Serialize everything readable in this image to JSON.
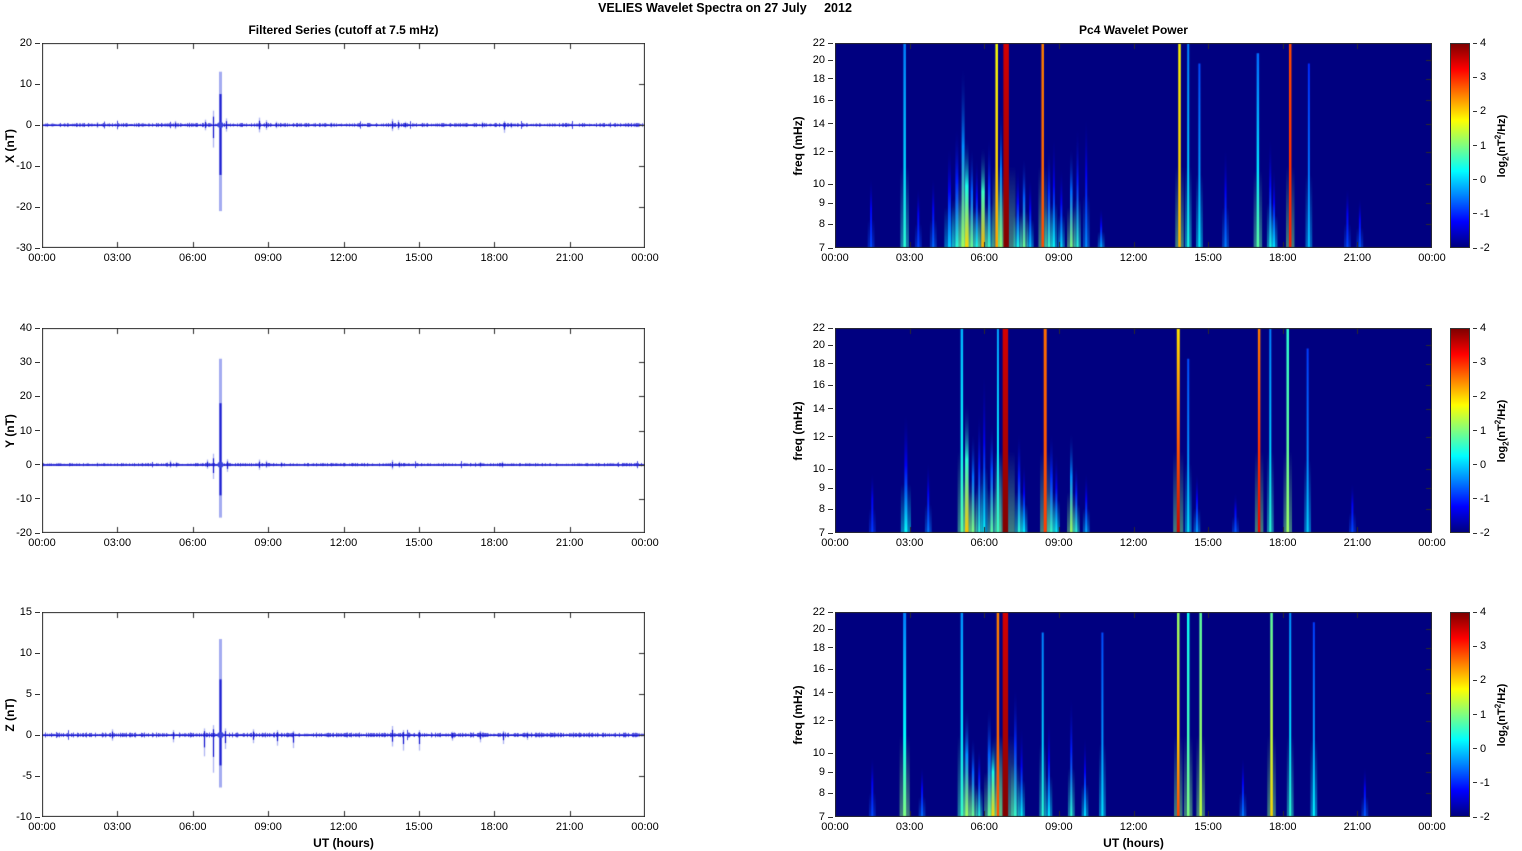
{
  "page": {
    "title": "VELIES Wavelet Spectra on 27 July     2012"
  },
  "time_axis": {
    "label": "UT (hours)",
    "tick_labels": [
      "00:00",
      "03:00",
      "06:00",
      "09:00",
      "12:00",
      "15:00",
      "18:00",
      "21:00",
      "00:00"
    ],
    "tick_hours": [
      0,
      3,
      6,
      9,
      12,
      15,
      18,
      21,
      24
    ],
    "range_hours": [
      0,
      24
    ]
  },
  "colors": {
    "line_blue": "#1414cd",
    "halo_blue": "#8c96e8",
    "axis": "#2b2b2b",
    "text": "#000000",
    "spectrogram_background": "#000080"
  },
  "colorbar": {
    "ticks": [
      4,
      3,
      2,
      1,
      0,
      -1,
      -2
    ],
    "range": [
      -2,
      4
    ],
    "label": {
      "prefix": "log",
      "sub": "2",
      "mid": "(nT",
      "sup": "2",
      "suffix": "/Hz)"
    }
  },
  "chart_data": [
    {
      "id": "series-x",
      "type": "line",
      "title": "Filtered Series (cutoff at 7.5 mHz)",
      "ylabel": "X (nT)",
      "ylim": [
        -30,
        20
      ],
      "yticks": [
        20,
        10,
        0,
        -10,
        -20,
        -30
      ],
      "noise_amp_nT": 0.5,
      "spikes_t_up_down": [
        [
          2.2,
          0.7,
          -0.7
        ],
        [
          5.3,
          1.0,
          -1.0
        ],
        [
          6.5,
          1.3,
          -1.3
        ],
        [
          6.8,
          3.5,
          -5.5
        ],
        [
          7.08,
          13,
          -21
        ],
        [
          7.32,
          1.6,
          -1.6
        ],
        [
          8.65,
          1.8,
          -1.8
        ],
        [
          8.92,
          1.2,
          -1.2
        ],
        [
          9.3,
          0.8,
          -0.8
        ],
        [
          11.5,
          0.6,
          -0.6
        ],
        [
          13.95,
          1.5,
          -1.5
        ],
        [
          14.15,
          1.2,
          -1.2
        ],
        [
          14.45,
          0.8,
          -0.8
        ],
        [
          17.5,
          0.8,
          -0.8
        ],
        [
          18.4,
          1.0,
          -1.9
        ],
        [
          18.65,
          0.6,
          -0.8
        ]
      ]
    },
    {
      "id": "wavelet-x",
      "type": "heatmap",
      "title": "Pc4 Wavelet Power",
      "ylabel": "freq (mHz)",
      "yticks": [
        22,
        20,
        18,
        16,
        14,
        12,
        10,
        9,
        8,
        7
      ],
      "flim": [
        7,
        22
      ],
      "clim": [
        -2,
        4
      ],
      "streaks_t_w_reach_level_top": [
        [
          1.45,
          2,
          0.35,
          -0.8,
          null
        ],
        [
          2.8,
          2.5,
          1,
          0.5,
          -0.5
        ],
        [
          3.35,
          2,
          0.3,
          -0.8,
          null
        ],
        [
          3.95,
          2,
          0.35,
          -0.6,
          null
        ],
        [
          4.6,
          3,
          0.5,
          0.0,
          null
        ],
        [
          4.9,
          3,
          0.6,
          0.5,
          null
        ],
        [
          5.15,
          3,
          0.9,
          1.2,
          null
        ],
        [
          5.3,
          3.5,
          0.55,
          2.0,
          null
        ],
        [
          5.5,
          2.5,
          0.5,
          0.9,
          null
        ],
        [
          5.7,
          2,
          0.45,
          0.4,
          null
        ],
        [
          5.95,
          3.5,
          0.5,
          2.2,
          null
        ],
        [
          6.2,
          2.5,
          0.55,
          0.6,
          null
        ],
        [
          6.5,
          2.5,
          1,
          2.3,
          1.7
        ],
        [
          6.67,
          2,
          0.7,
          1.1,
          null
        ],
        [
          6.88,
          5.5,
          1,
          4.0,
          3.5
        ],
        [
          7.35,
          2.5,
          0.4,
          0.4,
          null
        ],
        [
          7.6,
          2.5,
          0.45,
          0.9,
          null
        ],
        [
          7.85,
          2,
          0.35,
          0.0,
          null
        ],
        [
          8.35,
          2.5,
          1,
          2.8,
          2.5
        ],
        [
          8.6,
          2.5,
          0.5,
          0.6,
          null
        ],
        [
          8.8,
          2,
          0.55,
          0.3,
          null
        ],
        [
          9.1,
          2,
          0.4,
          0.1,
          null
        ],
        [
          9.5,
          2.5,
          0.5,
          1.0,
          null
        ],
        [
          9.75,
          2,
          0.6,
          0.5,
          null
        ],
        [
          10.1,
          2,
          0.65,
          -0.4,
          null
        ],
        [
          10.7,
          2,
          0.2,
          -0.2,
          null
        ],
        [
          13.85,
          2.5,
          1,
          2.2,
          1.8
        ],
        [
          14.2,
          2,
          1,
          0.4,
          -0.5
        ],
        [
          14.65,
          2,
          0.9,
          0.2,
          -0.8
        ],
        [
          15.7,
          2,
          0.5,
          -0.5,
          null
        ],
        [
          17.0,
          2.5,
          0.95,
          0.8,
          -0.6
        ],
        [
          17.5,
          2,
          0.55,
          0.4,
          null
        ],
        [
          17.65,
          2,
          0.4,
          0.1,
          null
        ],
        [
          18.3,
          2.5,
          1,
          3.1,
          2.8
        ],
        [
          19.05,
          2,
          0.9,
          -0.1,
          -1.0
        ],
        [
          20.6,
          2,
          0.3,
          -0.8,
          null
        ],
        [
          21.1,
          2,
          0.25,
          -0.7,
          null
        ]
      ]
    },
    {
      "id": "series-y",
      "type": "line",
      "title": "",
      "ylabel": "Y (nT)",
      "ylim": [
        -20,
        40
      ],
      "yticks": [
        40,
        30,
        20,
        10,
        0,
        -10,
        -20
      ],
      "noise_amp_nT": 0.5,
      "spikes_t_up_down": [
        [
          2.2,
          0.6,
          -0.6
        ],
        [
          5.1,
          1.2,
          -0.9
        ],
        [
          5.35,
          0.8,
          -0.8
        ],
        [
          6.55,
          1.5,
          -1.2
        ],
        [
          6.8,
          3.2,
          -4.2
        ],
        [
          7.08,
          31,
          -15.5
        ],
        [
          7.35,
          1.6,
          -2.1
        ],
        [
          8.65,
          1.5,
          -1.5
        ],
        [
          8.92,
          1.2,
          -1.0
        ],
        [
          9.5,
          0.8,
          -0.8
        ],
        [
          13.95,
          1.4,
          -1.4
        ],
        [
          14.2,
          0.9,
          -0.9
        ],
        [
          17.45,
          0.8,
          -0.8
        ],
        [
          18.3,
          0.9,
          -0.9
        ]
      ]
    },
    {
      "id": "wavelet-y",
      "type": "heatmap",
      "title": "",
      "ylabel": "freq (mHz)",
      "yticks": [
        22,
        20,
        18,
        16,
        14,
        12,
        10,
        9,
        8,
        7
      ],
      "flim": [
        7,
        22
      ],
      "clim": [
        -2,
        4
      ],
      "streaks_t_w_reach_level_top": [
        [
          1.5,
          2,
          0.3,
          -0.9,
          null
        ],
        [
          2.85,
          3,
          0.6,
          0.3,
          null
        ],
        [
          3.75,
          2,
          0.35,
          -0.5,
          null
        ],
        [
          5.1,
          2.5,
          1,
          0.8,
          -0.2
        ],
        [
          5.3,
          3.5,
          0.65,
          2.1,
          null
        ],
        [
          5.55,
          2.5,
          0.5,
          1.0,
          null
        ],
        [
          5.8,
          2,
          0.6,
          0.5,
          null
        ],
        [
          6.0,
          2,
          0.8,
          0.3,
          null
        ],
        [
          6.3,
          2.5,
          0.55,
          0.8,
          null
        ],
        [
          6.55,
          2,
          1,
          0.6,
          -0.3
        ],
        [
          6.85,
          5.5,
          1,
          4.0,
          3.5
        ],
        [
          7.4,
          2.5,
          0.5,
          0.5,
          null
        ],
        [
          7.6,
          2,
          0.35,
          0.2,
          null
        ],
        [
          8.45,
          3,
          1,
          2.9,
          2.6
        ],
        [
          8.7,
          2.5,
          0.5,
          0.6,
          null
        ],
        [
          8.9,
          2,
          0.4,
          0.3,
          null
        ],
        [
          9.5,
          2.5,
          0.5,
          1.2,
          null
        ],
        [
          9.7,
          2,
          0.35,
          0.5,
          null
        ],
        [
          10.1,
          2,
          0.3,
          -0.2,
          null
        ],
        [
          13.8,
          3,
          1,
          3.6,
          1.9
        ],
        [
          14.2,
          2,
          0.85,
          0.1,
          -0.8
        ],
        [
          14.55,
          2,
          0.3,
          -0.3,
          null
        ],
        [
          16.1,
          2,
          0.2,
          -0.7,
          null
        ],
        [
          17.05,
          2.5,
          1,
          3.4,
          2.5
        ],
        [
          17.5,
          2,
          1,
          0.5,
          -0.5
        ],
        [
          18.2,
          2.5,
          1,
          1.2,
          0.5
        ],
        [
          19.0,
          2,
          0.9,
          0.0,
          -0.9
        ],
        [
          20.8,
          2,
          0.25,
          -0.8,
          null
        ]
      ]
    },
    {
      "id": "series-z",
      "type": "line",
      "title": "",
      "xlabel": "UT (hours)",
      "ylabel": "Z (nT)",
      "ylim": [
        -10,
        15
      ],
      "yticks": [
        15,
        10,
        5,
        0,
        -5,
        -10
      ],
      "noise_amp_nT": 0.3,
      "spikes_t_up_down": [
        [
          2.8,
          0.7,
          -0.7
        ],
        [
          5.2,
          0.6,
          -0.9
        ],
        [
          6.45,
          0.8,
          -2.6
        ],
        [
          6.8,
          1.2,
          -4.6
        ],
        [
          7.08,
          11.7,
          -6.4
        ],
        [
          7.3,
          0.8,
          -1.7
        ],
        [
          8.4,
          0.7,
          -1.0
        ],
        [
          9.35,
          0.6,
          -1.3
        ],
        [
          10.0,
          0.5,
          -1.6
        ],
        [
          13.95,
          1.1,
          -1.4
        ],
        [
          14.35,
          0.6,
          -1.9
        ],
        [
          15.0,
          0.6,
          -1.9
        ],
        [
          16.3,
          0.4,
          -0.7
        ],
        [
          17.45,
          0.5,
          -0.9
        ],
        [
          18.35,
          0.5,
          -1.1
        ],
        [
          19.3,
          0.4,
          -0.6
        ]
      ]
    },
    {
      "id": "wavelet-z",
      "type": "heatmap",
      "title": "",
      "xlabel": "UT (hours)",
      "ylabel": "freq (mHz)",
      "yticks": [
        22,
        20,
        18,
        16,
        14,
        12,
        10,
        9,
        8,
        7
      ],
      "flim": [
        7,
        22
      ],
      "clim": [
        -2,
        4
      ],
      "streaks_t_w_reach_level_top": [
        [
          1.5,
          2,
          0.3,
          -0.8,
          null
        ],
        [
          2.8,
          3,
          1,
          1.0,
          -0.5
        ],
        [
          3.5,
          2,
          0.25,
          -0.6,
          null
        ],
        [
          5.1,
          2.5,
          1,
          0.6,
          -0.4
        ],
        [
          5.3,
          3,
          0.55,
          1.2,
          null
        ],
        [
          5.55,
          2.5,
          0.4,
          0.9,
          null
        ],
        [
          5.8,
          2,
          0.35,
          0.5,
          null
        ],
        [
          6.2,
          3,
          0.55,
          0.9,
          null
        ],
        [
          6.35,
          3,
          0.4,
          2.0,
          null
        ],
        [
          6.55,
          2.5,
          1,
          2.8,
          2.5
        ],
        [
          6.85,
          5.5,
          1,
          4.0,
          3.5
        ],
        [
          7.25,
          2.5,
          0.65,
          0.6,
          null
        ],
        [
          7.5,
          2,
          0.45,
          0.3,
          null
        ],
        [
          8.35,
          2,
          0.9,
          0.5,
          -0.5
        ],
        [
          8.6,
          2,
          0.5,
          0.2,
          null
        ],
        [
          9.5,
          2,
          0.6,
          0.5,
          null
        ],
        [
          10.05,
          2,
          0.4,
          0.1,
          null
        ],
        [
          10.75,
          2,
          0.9,
          0.1,
          -0.8
        ],
        [
          13.8,
          2.5,
          1,
          2.9,
          1.1
        ],
        [
          14.2,
          2.5,
          1,
          1.0,
          0.3
        ],
        [
          14.7,
          2.5,
          1,
          1.4,
          0.8
        ],
        [
          16.4,
          2,
          0.3,
          -0.5,
          null
        ],
        [
          17.55,
          2.5,
          1,
          2.0,
          0.8
        ],
        [
          18.3,
          2,
          1,
          0.5,
          -0.4
        ],
        [
          19.25,
          2,
          0.95,
          0.2,
          -0.9
        ],
        [
          21.3,
          2,
          0.25,
          -0.7,
          null
        ]
      ]
    }
  ]
}
